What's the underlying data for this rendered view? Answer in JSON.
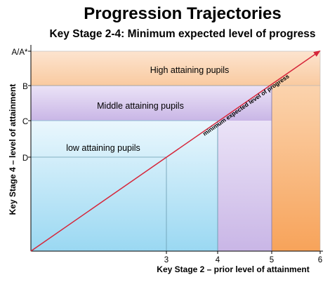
{
  "title": "Progression Trajectories",
  "subtitle": "Key Stage 2-4: Minimum expected level of progress",
  "axes": {
    "y_label": "Key Stage 4 – level of attainment",
    "x_label": "Key Stage 2 – prior level of attainment",
    "y_ticks": [
      "A/A*",
      "B",
      "C",
      "D"
    ],
    "x_ticks": [
      "3",
      "4",
      "5",
      "6"
    ]
  },
  "bands": {
    "high": "High attaining pupils",
    "middle": "Middle attaining pupils",
    "low": "low attaining pupils"
  },
  "trajectory_label": "minimum expected level of progress",
  "colors": {
    "trajectory": "#d6263a",
    "high_band": "#fbd4b2",
    "middle_band": "#d8ccec",
    "low_band": "#c6e9f7",
    "axis": "#000000"
  }
}
